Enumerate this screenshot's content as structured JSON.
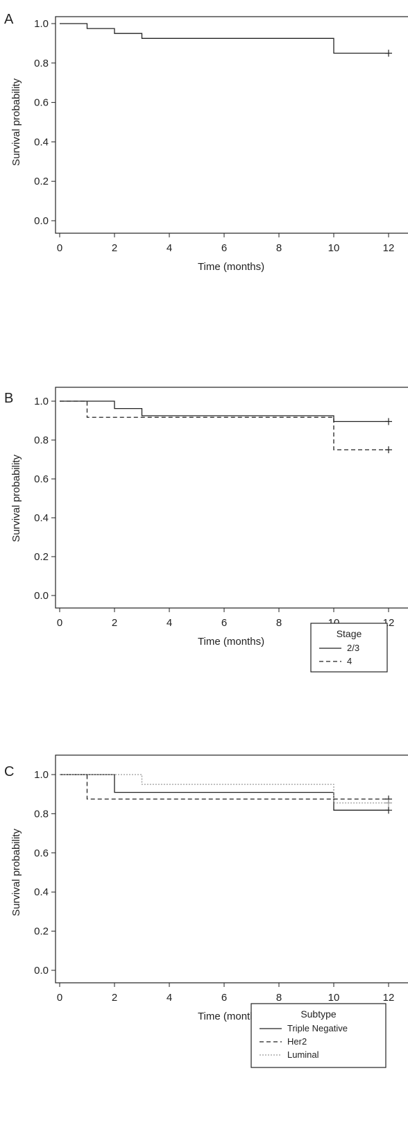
{
  "chart_data": [
    {
      "panel": "A",
      "type": "line",
      "xlabel": "Time (months)",
      "ylabel": "Survival probability",
      "xlim": [
        0,
        12
      ],
      "ylim": [
        0,
        1.0
      ],
      "xticks": [
        "0",
        "2",
        "4",
        "6",
        "8",
        "10",
        "12"
      ],
      "yticks": [
        "0.0",
        "0.2",
        "0.4",
        "0.6",
        "0.8",
        "1.0"
      ],
      "series": [
        {
          "style": "solid",
          "color": "#222222",
          "steps": [
            [
              0,
              1.0
            ],
            [
              1,
              0.975
            ],
            [
              2,
              0.95
            ],
            [
              3,
              0.925
            ],
            [
              10,
              0.85
            ],
            [
              12,
              0.85
            ]
          ],
          "censored": [
            [
              12,
              0.85
            ]
          ]
        }
      ]
    },
    {
      "panel": "B",
      "type": "line",
      "xlabel": "Time (months)",
      "ylabel": "Survival probability",
      "xlim": [
        0,
        12
      ],
      "ylim": [
        0,
        1.0
      ],
      "xticks": [
        "0",
        "2",
        "4",
        "6",
        "8",
        "10",
        "12"
      ],
      "yticks": [
        "0.0",
        "0.2",
        "0.4",
        "0.6",
        "0.8",
        "1.0"
      ],
      "legend": {
        "title": "Stage",
        "position": "bottom-right"
      },
      "series": [
        {
          "name": "2/3",
          "style": "solid",
          "color": "#222222",
          "steps": [
            [
              0,
              1.0
            ],
            [
              2,
              0.962
            ],
            [
              3,
              0.925
            ],
            [
              10,
              0.895
            ],
            [
              12,
              0.895
            ]
          ],
          "censored": [
            [
              12,
              0.895
            ]
          ]
        },
        {
          "name": "4",
          "style": "dashed",
          "color": "#222222",
          "steps": [
            [
              0,
              1.0
            ],
            [
              1,
              0.917
            ],
            [
              10,
              0.75
            ],
            [
              12,
              0.75
            ]
          ],
          "censored": [
            [
              12,
              0.75
            ]
          ]
        }
      ]
    },
    {
      "panel": "C",
      "type": "line",
      "xlabel": "Time (months)",
      "ylabel": "Survival probability",
      "xlim": [
        0,
        12
      ],
      "ylim": [
        0,
        1.0
      ],
      "xticks": [
        "0",
        "2",
        "4",
        "6",
        "8",
        "10",
        "12"
      ],
      "yticks": [
        "0.0",
        "0.2",
        "0.4",
        "0.6",
        "0.8",
        "1.0"
      ],
      "legend": {
        "title": "Subtype",
        "position": "bottom-right"
      },
      "series": [
        {
          "name": "Triple Negative",
          "style": "solid",
          "color": "#222222",
          "steps": [
            [
              0,
              1.0
            ],
            [
              2,
              0.909
            ],
            [
              10,
              0.818
            ],
            [
              12,
              0.818
            ]
          ],
          "censored": [
            [
              12,
              0.818
            ]
          ]
        },
        {
          "name": "Her2",
          "style": "dashed",
          "color": "#222222",
          "steps": [
            [
              0,
              1.0
            ],
            [
              1,
              0.875
            ],
            [
              12,
              0.875
            ]
          ],
          "censored": [
            [
              12,
              0.875
            ]
          ]
        },
        {
          "name": "Luminal",
          "style": "dotted",
          "color": "#999999",
          "steps": [
            [
              0,
              1.0
            ],
            [
              3,
              0.95
            ],
            [
              10,
              0.855
            ],
            [
              12,
              0.855
            ]
          ],
          "censored": [
            [
              12,
              0.855
            ]
          ]
        }
      ]
    }
  ]
}
